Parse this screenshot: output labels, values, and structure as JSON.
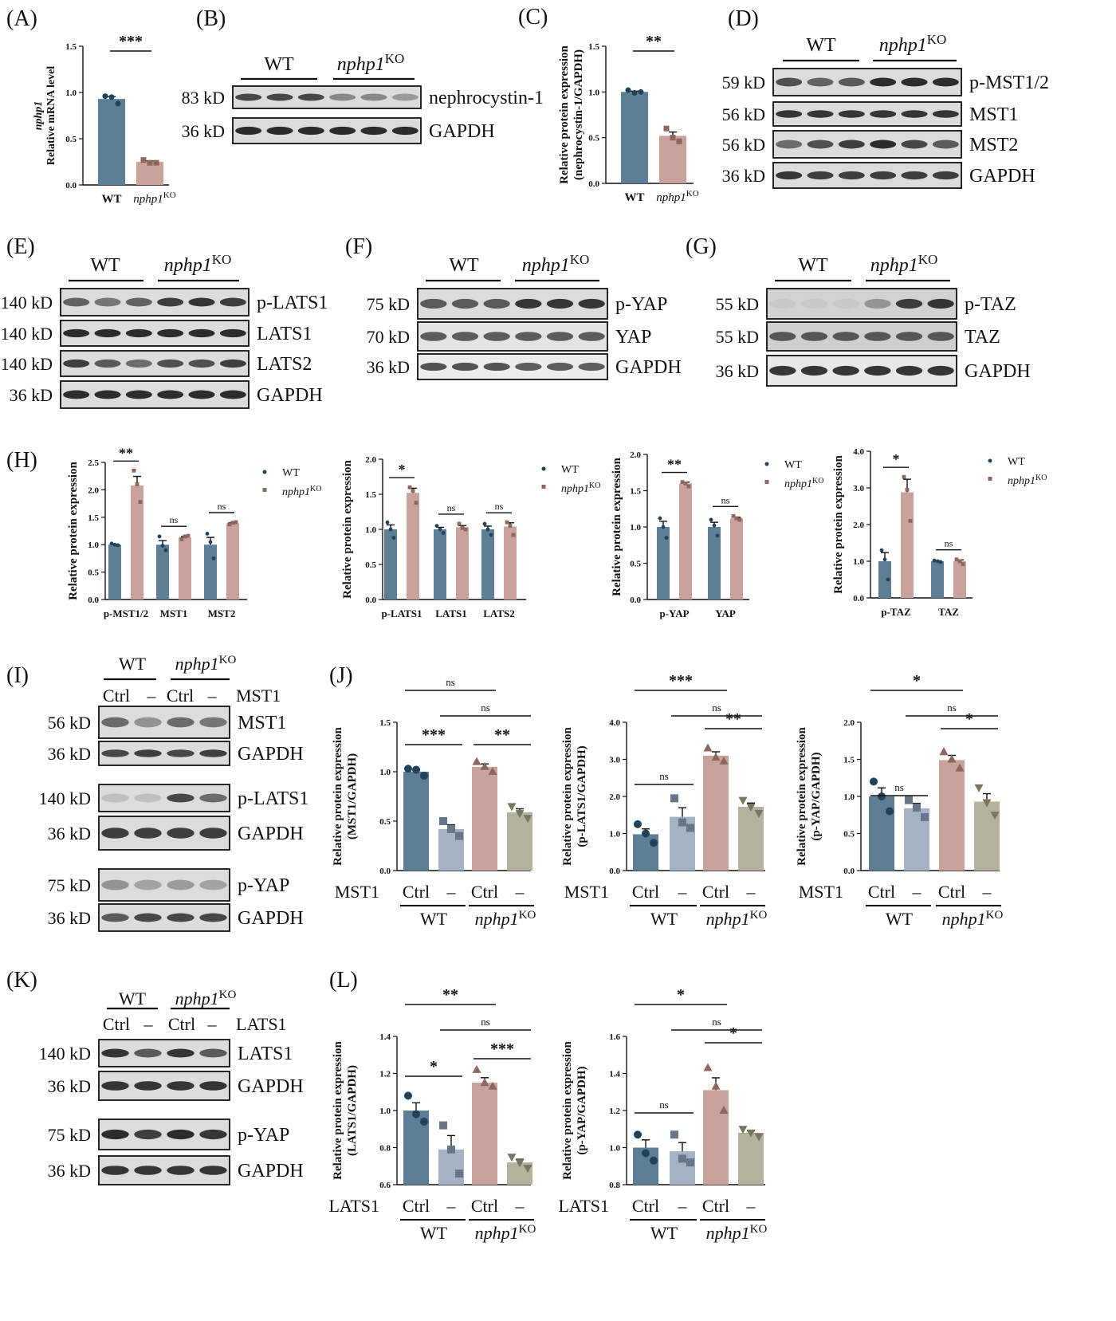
{
  "panel_labels": [
    "(A)",
    "(B)",
    "(C)",
    "(D)",
    "(E)",
    "(F)",
    "(G)",
    "(H)",
    "(I)",
    "(J)",
    "(K)",
    "(L)"
  ],
  "colors": {
    "wt": "#5c7f96",
    "ko": "#c8a29b",
    "wt_minus": "#a5b2c6",
    "ko_minus": "#b4b19d",
    "blot_bg": "#dcdcdc",
    "band": "#222222",
    "axis": "#111111"
  },
  "groups": {
    "wt": "WT",
    "ko": "nphp1",
    "ko_sup": "KO",
    "ctrl": "Ctrl",
    "minus": "–"
  },
  "blots": {
    "B": {
      "sizes": [
        "83 kD",
        "36 kD"
      ],
      "labels": [
        "nephrocystin-1",
        "GAPDH"
      ]
    },
    "D": {
      "sizes": [
        "59 kD",
        "56 kD",
        "56 kD",
        "36 kD"
      ],
      "labels": [
        "p-MST1/2",
        "MST1",
        "MST2",
        "GAPDH"
      ]
    },
    "E": {
      "sizes": [
        "140 kD",
        "140 kD",
        "140 kD",
        "36 kD"
      ],
      "labels": [
        "p-LATS1",
        "LATS1",
        "LATS2",
        "GAPDH"
      ]
    },
    "F": {
      "sizes": [
        "75 kD",
        "70 kD",
        "36 kD"
      ],
      "labels": [
        "p-YAP",
        "YAP",
        "GAPDH"
      ]
    },
    "G": {
      "sizes": [
        "55 kD",
        "55 kD",
        "36 kD"
      ],
      "labels": [
        "p-TAZ",
        "TAZ",
        "GAPDH"
      ]
    },
    "I": {
      "treatment": "MST1",
      "sizes": [
        "56 kD",
        "36 kD",
        "140 kD",
        "36 kD",
        "75 kD",
        "36 kD"
      ],
      "labels": [
        "MST1",
        "GAPDH",
        "p-LATS1",
        "GAPDH",
        "p-YAP",
        "GAPDH"
      ]
    },
    "K": {
      "treatment": "LATS1",
      "sizes": [
        "140 kD",
        "36 kD",
        "75 kD",
        "36 kD"
      ],
      "labels": [
        "LATS1",
        "GAPDH",
        "p-YAP",
        "GAPDH"
      ]
    }
  },
  "legend": {
    "wt": "WT",
    "ko": "nphp1"
  },
  "chart_data": [
    {
      "id": "A",
      "type": "bar",
      "ylabel_top": "nphp1",
      "ylabel": "Relative mRNA level",
      "ylim": [
        0,
        1.5
      ],
      "yticks": [
        "0.0",
        "0.5",
        "1.0",
        "1.5"
      ],
      "categories": [
        "WT",
        "nphp1"
      ],
      "values": [
        0.93,
        0.25
      ],
      "points": [
        [
          0.96,
          0.95,
          0.88
        ],
        [
          0.27,
          0.24,
          0.24
        ]
      ],
      "sig": [
        {
          "text": "***",
          "from": 0,
          "to": 1
        }
      ]
    },
    {
      "id": "C",
      "type": "bar",
      "ylabel": "Relative protein expression",
      "ylabel2": "(nephrocystin-1/GAPDH)",
      "ylim": [
        0,
        1.5
      ],
      "yticks": [
        "0.0",
        "0.5",
        "1.0",
        "1.5"
      ],
      "categories": [
        "WT",
        "nphp1"
      ],
      "values": [
        1.0,
        0.52
      ],
      "points": [
        [
          1.02,
          0.99,
          1.0
        ],
        [
          0.6,
          0.5,
          0.46
        ]
      ],
      "sig": [
        {
          "text": "**",
          "from": 0,
          "to": 1
        }
      ]
    },
    {
      "id": "H1",
      "type": "bar",
      "ylabel": "Relative protein expression",
      "ylim": [
        0,
        2.5
      ],
      "yticks": [
        "0.0",
        "0.5",
        "1.0",
        "1.5",
        "2.0",
        "2.5"
      ],
      "categories": [
        "p-MST1/2",
        "MST1",
        "MST2"
      ],
      "series": [
        {
          "name": "WT",
          "values": [
            1.0,
            1.0,
            1.0
          ],
          "points": [
            [
              1.02,
              1.0,
              0.99
            ],
            [
              1.15,
              0.98,
              0.9
            ],
            [
              1.2,
              1.05,
              0.75
            ]
          ]
        },
        {
          "name": "nphp1",
          "values": [
            2.08,
            1.13,
            1.39
          ],
          "points": [
            [
              2.35,
              2.1,
              1.78
            ],
            [
              1.1,
              1.15,
              1.16
            ],
            [
              1.37,
              1.4,
              1.41
            ]
          ]
        }
      ],
      "sig": [
        "**",
        "ns",
        "ns"
      ]
    },
    {
      "id": "H2",
      "type": "bar",
      "ylabel": "Relative protein expression",
      "ylim": [
        0,
        2.0
      ],
      "yticks": [
        "0.0",
        "0.5",
        "1.0",
        "1.5",
        "2.0"
      ],
      "categories": [
        "p-LATS1",
        "LATS1",
        "LATS2"
      ],
      "series": [
        {
          "name": "WT",
          "values": [
            1.0,
            1.0,
            1.0
          ],
          "points": [
            [
              1.1,
              1.0,
              0.88
            ],
            [
              1.05,
              1.0,
              0.95
            ],
            [
              1.08,
              1.0,
              0.92
            ]
          ]
        },
        {
          "name": "nphp1",
          "values": [
            1.52,
            1.03,
            1.04
          ],
          "points": [
            [
              1.6,
              1.55,
              1.38
            ],
            [
              1.08,
              1.02,
              1.0
            ],
            [
              1.1,
              1.05,
              0.92
            ]
          ]
        }
      ],
      "sig": [
        "*",
        "ns",
        "ns"
      ]
    },
    {
      "id": "H3",
      "type": "bar",
      "ylabel": "Relative protein expression",
      "ylim": [
        0,
        2.0
      ],
      "yticks": [
        "0.0",
        "0.5",
        "1.0",
        "1.5",
        "2.0"
      ],
      "categories": [
        "p-YAP",
        "YAP"
      ],
      "series": [
        {
          "name": "WT",
          "values": [
            1.0,
            1.0
          ],
          "points": [
            [
              1.12,
              1.0,
              0.85
            ],
            [
              1.1,
              1.02,
              0.88
            ]
          ]
        },
        {
          "name": "nphp1",
          "values": [
            1.6,
            1.12
          ],
          "points": [
            [
              1.62,
              1.6,
              1.56
            ],
            [
              1.15,
              1.12,
              1.1
            ]
          ]
        }
      ],
      "sig": [
        "**",
        "ns"
      ]
    },
    {
      "id": "H4",
      "type": "bar",
      "ylabel": "Relative protein expression",
      "ylim": [
        0,
        4.0
      ],
      "yticks": [
        "0.0",
        "1.0",
        "2.0",
        "3.0",
        "4.0"
      ],
      "categories": [
        "p-TAZ",
        "TAZ"
      ],
      "series": [
        {
          "name": "WT",
          "values": [
            1.0,
            1.0
          ],
          "points": [
            [
              1.3,
              1.05,
              0.5
            ],
            [
              1.02,
              1.0,
              0.98
            ]
          ]
        },
        {
          "name": "nphp1",
          "values": [
            2.88,
            1.0
          ],
          "points": [
            [
              3.3,
              2.95,
              2.1
            ],
            [
              1.05,
              1.0,
              0.92
            ]
          ]
        }
      ],
      "sig": [
        "*",
        "ns"
      ]
    },
    {
      "id": "J1",
      "type": "bar",
      "ylabel": "Relative protein expression",
      "ylabel2": "(MST1/GAPDH)",
      "ylim": [
        0,
        1.5
      ],
      "yticks": [
        "0.0",
        "0.5",
        "1.0",
        "1.5"
      ],
      "treatment": "MST1",
      "categories": [
        "Ctrl",
        "–",
        "Ctrl",
        "–"
      ],
      "values": [
        1.0,
        0.42,
        1.05,
        0.59
      ],
      "points": [
        [
          1.03,
          1.02,
          0.96
        ],
        [
          0.5,
          0.42,
          0.35
        ],
        [
          1.1,
          1.05,
          1.0
        ],
        [
          0.65,
          0.58,
          0.53
        ]
      ],
      "sig": [
        {
          "text": "ns",
          "from": 0,
          "to": 2,
          "level": 3
        },
        {
          "text": "ns",
          "from": 1,
          "to": 3,
          "level": 2
        },
        {
          "text": "***",
          "from": 0,
          "to": 1,
          "level": 1
        },
        {
          "text": "**",
          "from": 2,
          "to": 3,
          "level": 1
        }
      ]
    },
    {
      "id": "J2",
      "type": "bar",
      "ylabel": "Relative protein expression",
      "ylabel2": "(p-LATS1/GAPDH)",
      "ylim": [
        0,
        4.0
      ],
      "yticks": [
        "0.0",
        "1.0",
        "2.0",
        "3.0",
        "4.0"
      ],
      "treatment": "MST1",
      "categories": [
        "Ctrl",
        "–",
        "Ctrl",
        "–"
      ],
      "values": [
        0.98,
        1.45,
        3.1,
        1.72
      ],
      "points": [
        [
          1.25,
          1.0,
          0.75
        ],
        [
          1.95,
          1.3,
          1.15
        ],
        [
          3.3,
          3.05,
          2.95
        ],
        [
          1.9,
          1.72,
          1.55
        ]
      ],
      "sig": [
        {
          "text": "***",
          "from": 0,
          "to": 2,
          "level": 3
        },
        {
          "text": "ns",
          "from": 1,
          "to": 3,
          "level": 2
        },
        {
          "text": "ns",
          "from": 0,
          "to": 1,
          "level": 1
        },
        {
          "text": "**",
          "from": 2,
          "to": 3,
          "level": 1
        }
      ]
    },
    {
      "id": "J3",
      "type": "bar",
      "ylabel": "Relative protein expression",
      "ylabel2": "(p-YAP/GAPDH)",
      "ylim": [
        0,
        2.0
      ],
      "yticks": [
        "0.0",
        "0.5",
        "1.0",
        "1.5",
        "2.0"
      ],
      "treatment": "MST1",
      "categories": [
        "Ctrl",
        "–",
        "Ctrl",
        "–"
      ],
      "values": [
        1.0,
        0.84,
        1.49,
        0.93
      ],
      "points": [
        [
          1.2,
          1.0,
          0.8
        ],
        [
          0.95,
          0.85,
          0.72
        ],
        [
          1.6,
          1.5,
          1.38
        ],
        [
          1.12,
          0.92,
          0.75
        ]
      ],
      "sig": [
        {
          "text": "*",
          "from": 0,
          "to": 2,
          "level": 3
        },
        {
          "text": "ns",
          "from": 1,
          "to": 3,
          "level": 2
        },
        {
          "text": "ns",
          "from": 0,
          "to": 1,
          "level": 1
        },
        {
          "text": "*",
          "from": 2,
          "to": 3,
          "level": 1
        }
      ]
    },
    {
      "id": "L1",
      "type": "bar",
      "ylabel": "Relative protein expression",
      "ylabel2": "(LATS1/GAPDH)",
      "ylim": [
        0.6,
        1.4
      ],
      "yticks": [
        "0.6",
        "0.8",
        "1.0",
        "1.2",
        "1.4"
      ],
      "treatment": "LATS1",
      "categories": [
        "Ctrl",
        "–",
        "Ctrl",
        "–"
      ],
      "values": [
        1.0,
        0.79,
        1.15,
        0.72
      ],
      "points": [
        [
          1.08,
          0.98,
          0.94
        ],
        [
          0.92,
          0.79,
          0.66
        ],
        [
          1.22,
          1.15,
          1.13
        ],
        [
          0.75,
          0.72,
          0.69
        ]
      ],
      "sig": [
        {
          "text": "**",
          "from": 0,
          "to": 2,
          "level": 3
        },
        {
          "text": "ns",
          "from": 1,
          "to": 3,
          "level": 2
        },
        {
          "text": "*",
          "from": 0,
          "to": 1,
          "level": 1
        },
        {
          "text": "***",
          "from": 2,
          "to": 3,
          "level": 1
        }
      ]
    },
    {
      "id": "L2",
      "type": "bar",
      "ylabel": "Relative protein expression",
      "ylabel2": "(p-YAP/GAPDH)",
      "ylim": [
        0.8,
        1.6
      ],
      "yticks": [
        "0.8",
        "1.0",
        "1.2",
        "1.4",
        "1.6"
      ],
      "treatment": "LATS1",
      "categories": [
        "Ctrl",
        "–",
        "Ctrl",
        "–"
      ],
      "values": [
        1.0,
        0.98,
        1.31,
        1.08
      ],
      "points": [
        [
          1.07,
          0.97,
          0.93
        ],
        [
          1.07,
          0.94,
          0.92
        ],
        [
          1.43,
          1.33,
          1.2
        ],
        [
          1.1,
          1.08,
          1.06
        ]
      ],
      "sig": [
        {
          "text": "*",
          "from": 0,
          "to": 2,
          "level": 3
        },
        {
          "text": "ns",
          "from": 1,
          "to": 3,
          "level": 2
        },
        {
          "text": "ns",
          "from": 0,
          "to": 1,
          "level": 1
        },
        {
          "text": "*",
          "from": 2,
          "to": 3,
          "level": 1
        }
      ]
    }
  ]
}
